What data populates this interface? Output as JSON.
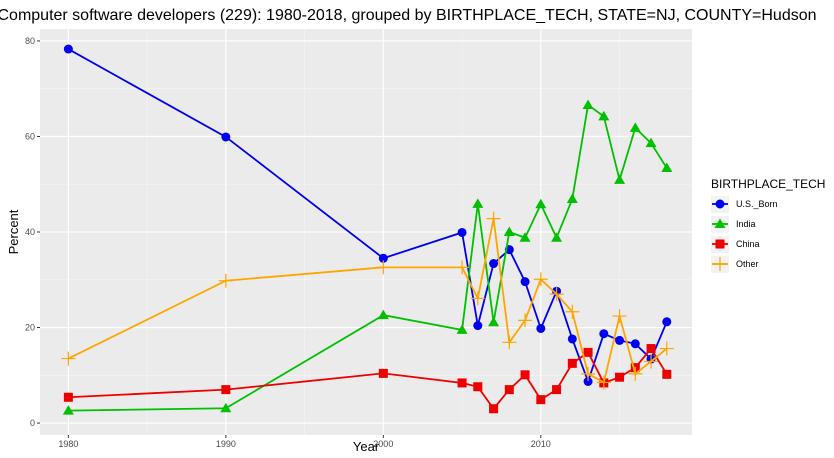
{
  "chart_data": {
    "type": "line",
    "title": "Computer software developers (229): 1980-2018, grouped by BIRTHPLACE_TECH, STATE=NJ, COUNTY=Hudson",
    "xlabel": "Year",
    "ylabel": "Percent",
    "xlim": [
      1978.2,
      2019.6
    ],
    "ylim": [
      -2.5,
      82.5
    ],
    "x_ticks": [
      1980,
      1990,
      2000,
      2010
    ],
    "y_ticks": [
      0,
      20,
      40,
      60,
      80
    ],
    "grid": true,
    "legend": {
      "title": "BIRTHPLACE_TECH",
      "position": "right"
    },
    "x": [
      1980,
      1990,
      2000,
      2005,
      2006,
      2007,
      2008,
      2009,
      2010,
      2011,
      2012,
      2013,
      2014,
      2015,
      2016,
      2017,
      2018
    ],
    "series": [
      {
        "name": "U.S._Born",
        "color": "#0000ee",
        "marker": "circle",
        "values": [
          78.3,
          59.9,
          34.5,
          39.9,
          20.4,
          33.4,
          36.3,
          29.6,
          19.8,
          27.6,
          17.6,
          8.7,
          18.7,
          17.3,
          16.6,
          13.4,
          21.2
        ]
      },
      {
        "name": "India",
        "color": "#00c000",
        "marker": "triangle",
        "values": [
          2.6,
          3.1,
          22.6,
          19.5,
          45.9,
          21.1,
          40.0,
          38.8,
          45.8,
          38.8,
          46.9,
          66.6,
          64.2,
          50.9,
          61.8,
          58.6,
          53.4
        ]
      },
      {
        "name": "China",
        "color": "#ee0000",
        "marker": "square",
        "values": [
          5.4,
          7.0,
          10.4,
          8.4,
          7.6,
          3.0,
          7.0,
          10.1,
          4.9,
          7.0,
          12.5,
          14.8,
          8.4,
          9.6,
          11.6,
          15.6,
          10.2
        ]
      },
      {
        "name": "Other",
        "color": "#ffa500",
        "marker": "plus",
        "values": [
          13.5,
          29.8,
          32.6,
          32.6,
          26.1,
          42.8,
          16.9,
          21.5,
          30.1,
          27.0,
          23.3,
          10.3,
          8.5,
          22.4,
          10.3,
          12.9,
          15.6
        ]
      }
    ]
  }
}
